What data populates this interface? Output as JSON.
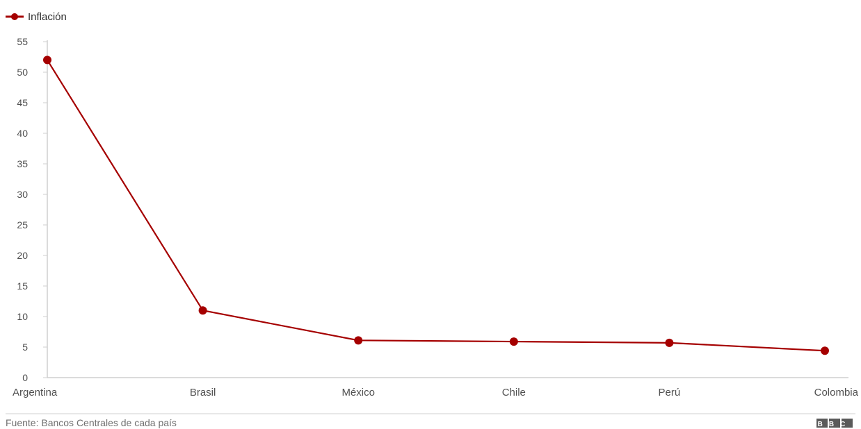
{
  "chart_data": {
    "type": "line",
    "categories": [
      "Argentina",
      "Brasil",
      "México",
      "Chile",
      "Perú",
      "Colombia"
    ],
    "series": [
      {
        "name": "Inflación",
        "color": "#a50000",
        "values": [
          52,
          11,
          6.1,
          5.9,
          5.7,
          4.4
        ]
      }
    ],
    "yticks": [
      0,
      5,
      10,
      15,
      20,
      25,
      30,
      35,
      40,
      45,
      50,
      55
    ],
    "ylim": [
      0,
      55
    ],
    "grid": false,
    "legend_position": "top-left"
  },
  "footer": {
    "source": "Fuente: Bancos Centrales de cada país",
    "logo": "BBC"
  }
}
